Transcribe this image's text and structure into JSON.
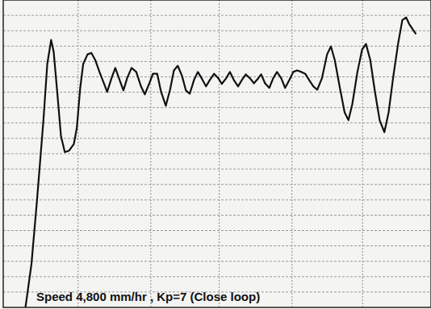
{
  "chart_data": {
    "type": "line",
    "title": "Speed 4,800 mm/hr , Kp=7 (Close loop)",
    "x": [
      5.2,
      6.6,
      7.9,
      9.4,
      10.3,
      11.2,
      11.8,
      12.7,
      13.5,
      14.4,
      15.4,
      16.5,
      17.2,
      18.0,
      18.7,
      19.7,
      20.6,
      21.5,
      22.5,
      23.6,
      24.3,
      25.3,
      26.2,
      27.2,
      28.1,
      29.0,
      30.0,
      31.1,
      32.2,
      33.1,
      34.1,
      35.0,
      36.0,
      36.9,
      38.0,
      39.0,
      39.9,
      40.8,
      41.8,
      42.7,
      43.6,
      44.6,
      45.5,
      46.4,
      47.4,
      48.3,
      49.3,
      50.2,
      51.1,
      52.1,
      53.0,
      53.9,
      54.9,
      55.8,
      56.7,
      57.7,
      58.6,
      59.6,
      60.3,
      61.2,
      62.2,
      63.1,
      64.0,
      65.0,
      65.9,
      66.9,
      67.8,
      68.7,
      69.7,
      70.6,
      71.5,
      72.5,
      73.4,
      74.5,
      75.7,
      76.6,
      77.5,
      78.7,
      79.8,
      80.7,
      81.6,
      82.8,
      83.9,
      84.8,
      85.8,
      86.9,
      88.0,
      89.1,
      90.1,
      91.2,
      92.3,
      93.3,
      94.2,
      94.9,
      95.9,
      96.4
    ],
    "values": [
      0,
      14.1,
      34.9,
      60.9,
      79.2,
      87.0,
      83.1,
      68.8,
      55.7,
      50.5,
      51.0,
      53.1,
      58.3,
      71.4,
      79.2,
      82.3,
      82.8,
      80.5,
      76.6,
      72.7,
      70.1,
      74.5,
      77.9,
      74.0,
      70.6,
      74.7,
      77.9,
      76.6,
      71.9,
      69.3,
      72.7,
      76.0,
      76.0,
      70.1,
      65.6,
      70.8,
      77.1,
      78.6,
      75.3,
      70.6,
      69.5,
      74.0,
      76.6,
      74.5,
      71.9,
      74.0,
      76.0,
      74.7,
      72.7,
      74.5,
      76.6,
      74.0,
      71.9,
      74.0,
      75.8,
      74.5,
      72.9,
      74.5,
      75.8,
      72.9,
      71.4,
      74.5,
      76.6,
      74.5,
      71.4,
      74.0,
      76.6,
      77.1,
      76.6,
      76.0,
      74.0,
      71.9,
      70.8,
      74.5,
      82.3,
      84.9,
      80.5,
      71.4,
      63.5,
      60.9,
      66.1,
      76.6,
      83.9,
      85.7,
      80.5,
      70.1,
      60.9,
      57.0,
      63.5,
      75.3,
      85.7,
      93.5,
      94.3,
      92.2,
      90.1,
      89.1
    ],
    "color": "#111111",
    "xlim": [
      0,
      100
    ],
    "ylim": [
      0,
      100
    ],
    "xticks": [
      17.5,
      34.5,
      50.5,
      67.5,
      84
    ],
    "yticks": [
      5,
      10,
      15,
      20,
      25,
      30,
      35,
      40,
      45,
      50,
      55,
      60,
      65,
      70,
      75,
      80,
      85,
      90,
      95
    ],
    "grid": true,
    "tick_labels": false
  }
}
